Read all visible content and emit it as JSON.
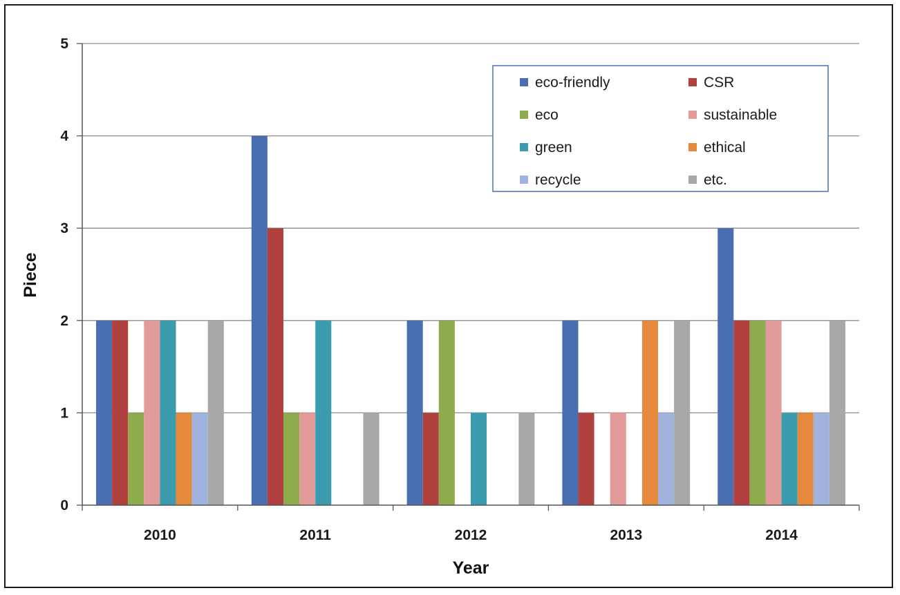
{
  "chart_data": {
    "type": "bar",
    "title": "",
    "xlabel": "Year",
    "ylabel": "Piece",
    "categories": [
      "2010",
      "2011",
      "2012",
      "2013",
      "2014"
    ],
    "ylim": [
      0,
      5
    ],
    "yticks": [
      0,
      1,
      2,
      3,
      4,
      5
    ],
    "grid": true,
    "legend_position": "top-right",
    "series": [
      {
        "name": "eco-friendly",
        "color": "#4a6fb0",
        "values": [
          2,
          4,
          2,
          2,
          3
        ]
      },
      {
        "name": "CSR",
        "color": "#b0413e",
        "values": [
          2,
          3,
          1,
          1,
          2
        ]
      },
      {
        "name": "eco",
        "color": "#8eac4e",
        "values": [
          1,
          1,
          2,
          0,
          2
        ]
      },
      {
        "name": "sustainable",
        "color": "#e29b9b",
        "values": [
          2,
          1,
          0,
          1,
          2
        ]
      },
      {
        "name": "green",
        "color": "#3b9cb0",
        "values": [
          2,
          2,
          1,
          0,
          1
        ]
      },
      {
        "name": "ethical",
        "color": "#e58a3c",
        "values": [
          1,
          0,
          0,
          2,
          1
        ]
      },
      {
        "name": "recycle",
        "color": "#9fb3dc",
        "values": [
          1,
          0,
          0,
          1,
          1
        ]
      },
      {
        "name": "etc.",
        "color": "#a8a8a8",
        "values": [
          2,
          1,
          1,
          2,
          2
        ]
      }
    ]
  }
}
